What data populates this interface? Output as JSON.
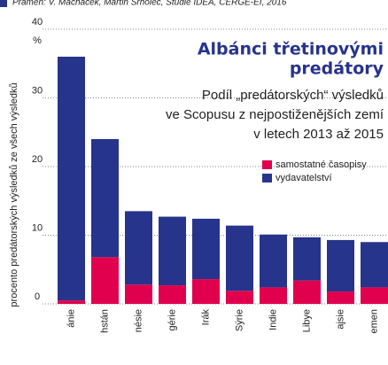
{
  "chart_data": {
    "type": "stacked_bar",
    "source": "Pramen: V. Macháček, Martin Srholec, Studie IDEA, CERGE-EI, 2016",
    "title": [
      "Albánci třetinovými",
      "predátory"
    ],
    "subtitle": [
      "Podíl „predátorských“ výsledků",
      "ve Scopusu z nejpostiženějších zemí",
      "v letech 2013 až 2015"
    ],
    "y_label": "procento predátorských výsledků ze všech výsledků",
    "y_unit": "%",
    "categories": [
      "ánie",
      "hstán",
      "nésie",
      "gérie",
      "Irák",
      "Sýrie",
      "Indie",
      "Libye",
      "ajsie",
      "emen"
    ],
    "series": [
      {
        "name": "samostatné časopisy",
        "color": "#e0004d",
        "values": [
          0.5,
          6.8,
          2.8,
          2.7,
          3.6,
          1.9,
          2.4,
          3.4,
          1.8,
          2.4
        ]
      },
      {
        "name": "vydavatelství",
        "color": "#27348b",
        "values": [
          35.5,
          17.2,
          10.7,
          10.0,
          8.8,
          9.5,
          7.7,
          6.3,
          7.5,
          6.6
        ]
      }
    ],
    "ylim": [
      0,
      40
    ],
    "yticks": [
      0,
      10,
      20,
      30,
      40
    ],
    "grid": true,
    "legend": "upper right"
  }
}
